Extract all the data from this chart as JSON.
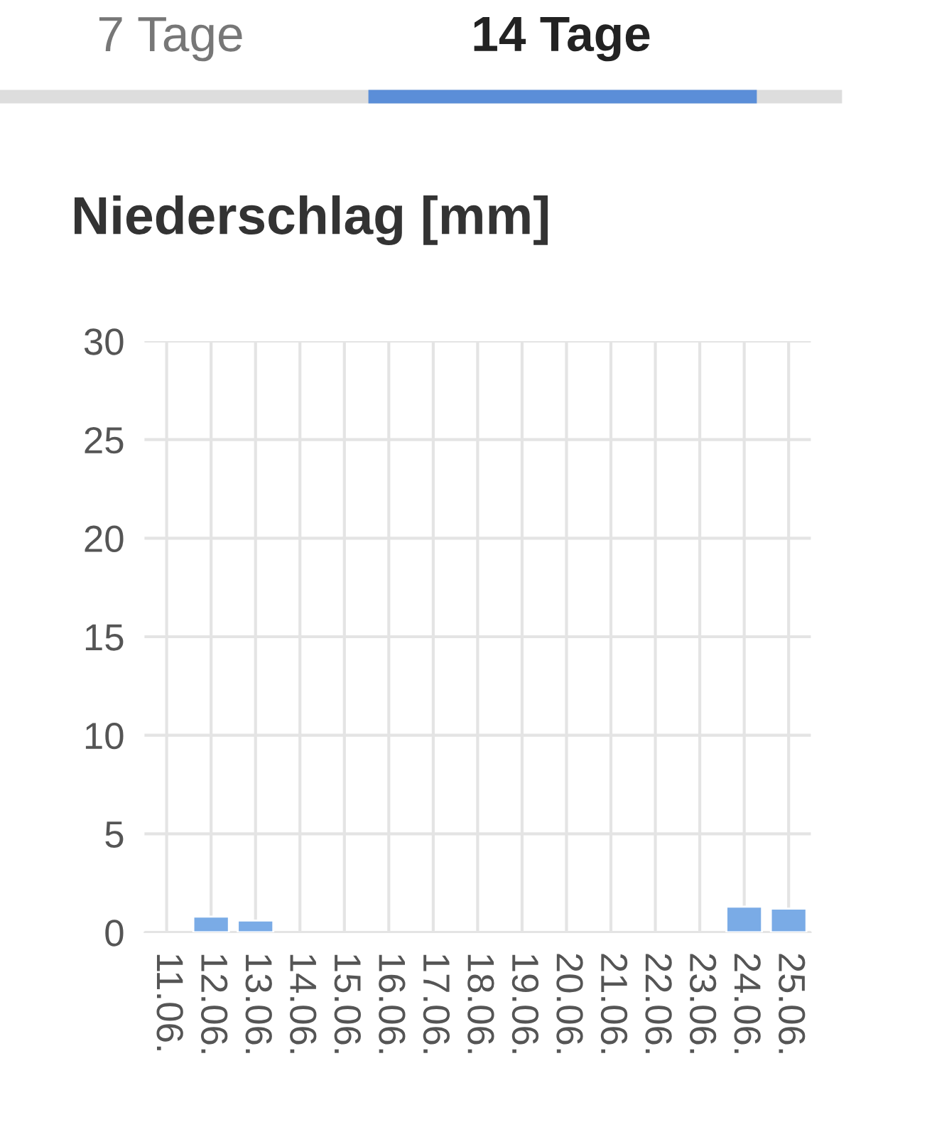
{
  "chart_data": {
    "type": "bar",
    "title": "Niederschlag [mm]",
    "annotations": [
      "7 Tage",
      "14 Tage"
    ],
    "categories": [
      "11.06.",
      "12.06.",
      "13.06.",
      "14.06.",
      "15.06.",
      "16.06.",
      "17.06.",
      "18.06.",
      "19.06.",
      "20.06.",
      "21.06.",
      "22.06.",
      "23.06.",
      "24.06.",
      "25.06."
    ],
    "values": [
      null,
      0.8,
      0.6,
      null,
      null,
      null,
      null,
      null,
      null,
      null,
      null,
      null,
      null,
      1.3,
      1.2
    ],
    "color": "#7aabe6",
    "ylim": [
      0,
      30
    ],
    "yticks": [
      0,
      5,
      10,
      15,
      20,
      25,
      30
    ],
    "grid": true
  }
}
